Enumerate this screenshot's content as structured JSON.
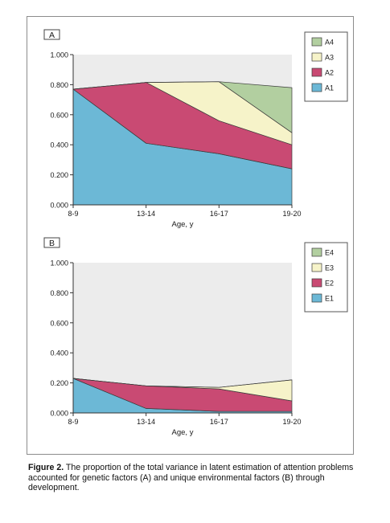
{
  "caption": {
    "label": "Figure 2.",
    "text": " The proportion of the total variance in latent estimation of attention problems accounted for genetic factors (A) and unique environmental factors (B) through development."
  },
  "colors": {
    "plot_background": "#ececec",
    "series_1": "#6cb8d6",
    "series_2": "#c94a73",
    "series_3": "#f6f3c9",
    "series_4": "#b2cfa0",
    "axis": "#333333"
  },
  "chart_data": [
    {
      "type": "area",
      "stacked": true,
      "panel_label": "A",
      "categories": [
        "8-9",
        "13-14",
        "16-17",
        "19-20"
      ],
      "xlabel": "Age, y",
      "ylabel": "",
      "ylim": [
        0,
        1
      ],
      "yticks": [
        "0.000",
        "0.200",
        "0.400",
        "0.600",
        "0.800",
        "1.000"
      ],
      "legend_position": "top-right",
      "grid": false,
      "series": [
        {
          "name": "A1",
          "values": [
            0.77,
            0.41,
            0.34,
            0.24
          ]
        },
        {
          "name": "A2",
          "values": [
            0.0,
            0.405,
            0.22,
            0.16
          ]
        },
        {
          "name": "A3",
          "values": [
            0.0,
            0.0,
            0.26,
            0.08
          ]
        },
        {
          "name": "A4",
          "values": [
            0.0,
            0.0,
            0.0,
            0.3
          ]
        }
      ]
    },
    {
      "type": "area",
      "stacked": true,
      "panel_label": "B",
      "categories": [
        "8-9",
        "13-14",
        "16-17",
        "19-20"
      ],
      "xlabel": "Age, y",
      "ylabel": "",
      "ylim": [
        0,
        1
      ],
      "yticks": [
        "0.000",
        "0.200",
        "0.400",
        "0.600",
        "0.800",
        "1.000"
      ],
      "legend_position": "top-right",
      "grid": false,
      "series": [
        {
          "name": "E1",
          "values": [
            0.23,
            0.03,
            0.01,
            0.01
          ]
        },
        {
          "name": "E2",
          "values": [
            0.0,
            0.15,
            0.15,
            0.07
          ]
        },
        {
          "name": "E3",
          "values": [
            0.0,
            0.0,
            0.01,
            0.14
          ]
        },
        {
          "name": "E4",
          "values": [
            0.0,
            0.0,
            0.0,
            0.0
          ]
        }
      ]
    }
  ]
}
